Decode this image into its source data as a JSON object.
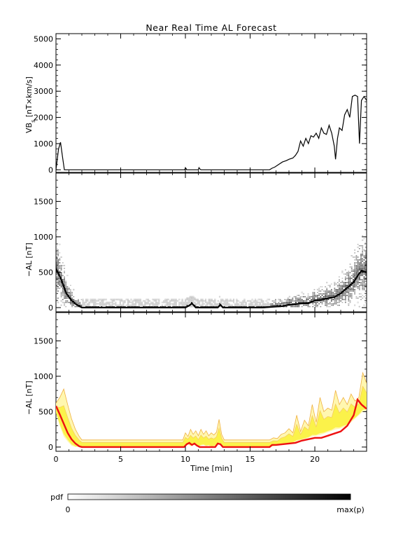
{
  "chart_data": [
    {
      "type": "line",
      "title": "Near Real Time AL Forecast",
      "ylabel": "VB",
      "ylabel_sub": "s",
      "ylabel_units": " [nT×km/s]",
      "ylim": [
        -100,
        5200
      ],
      "yticks": [
        "0",
        "1000",
        "2000",
        "3000",
        "4000",
        "5000"
      ],
      "xlim": [
        0,
        24
      ],
      "series": [
        {
          "color": "#000000",
          "x": [
            0,
            0.2,
            0.35,
            0.5,
            0.65,
            0.8,
            1.0,
            9.95,
            10.0,
            10.05,
            10.1,
            11.0,
            11.05,
            11.1,
            11.2,
            16.5,
            16.7,
            16.9,
            17.2,
            17.5,
            17.8,
            18.0,
            18.3,
            18.5,
            18.7,
            18.9,
            19.1,
            19.3,
            19.5,
            19.7,
            19.9,
            20.1,
            20.3,
            20.5,
            20.7,
            20.9,
            21.1,
            21.3,
            21.5,
            21.6,
            21.75,
            21.9,
            22.1,
            22.3,
            22.5,
            22.7,
            22.9,
            23.1,
            23.3,
            23.45,
            23.6,
            23.8,
            24.0
          ],
          "y": [
            0,
            800,
            1050,
            500,
            0,
            0,
            0,
            0,
            80,
            50,
            0,
            0,
            80,
            40,
            0,
            0,
            60,
            100,
            200,
            300,
            350,
            400,
            450,
            550,
            700,
            1100,
            900,
            1200,
            1000,
            1300,
            1250,
            1400,
            1200,
            1600,
            1400,
            1350,
            1700,
            1400,
            900,
            400,
            1200,
            1600,
            1500,
            2100,
            2300,
            2000,
            2800,
            2850,
            2800,
            1000,
            2650,
            2800,
            2650
          ]
        }
      ]
    },
    {
      "type": "heatmap",
      "ylabel": "−AL [nT]",
      "ylim": [
        -60,
        1900
      ],
      "yticks": [
        "0",
        "500",
        "1000",
        "1500"
      ],
      "xlim": [
        0,
        24
      ],
      "center_line": {
        "x": [
          0,
          0.4,
          0.8,
          1.2,
          1.6,
          2.0,
          10.0,
          10.3,
          10.5,
          10.8,
          12.5,
          12.7,
          12.9,
          16.0,
          16.7,
          17.5,
          18.0,
          18.5,
          19.0,
          19.5,
          20.0,
          20.5,
          21.0,
          21.5,
          22.0,
          22.5,
          23.0,
          23.3,
          23.6,
          24.0
        ],
        "y": [
          550,
          400,
          200,
          100,
          40,
          0,
          0,
          30,
          60,
          0,
          0,
          40,
          0,
          0,
          10,
          20,
          40,
          50,
          60,
          60,
          100,
          110,
          130,
          150,
          200,
          280,
          360,
          450,
          520,
          500
        ]
      }
    },
    {
      "type": "area",
      "ylabel": "−AL [nT]",
      "xlabel": "Time [min]",
      "ylim": [
        -60,
        1900
      ],
      "yticks": [
        "0",
        "500",
        "1000",
        "1500"
      ],
      "xlim": [
        0,
        24
      ],
      "xticks": [
        "0",
        "5",
        "10",
        "15",
        "20"
      ],
      "xtick_values": [
        0,
        5,
        10,
        15,
        20
      ],
      "band": {
        "x": [
          0,
          0.3,
          0.6,
          0.9,
          1.2,
          1.5,
          1.8,
          2.0,
          9.8,
          10.0,
          10.2,
          10.4,
          10.6,
          10.8,
          11.0,
          11.2,
          11.4,
          11.6,
          11.8,
          12.0,
          12.2,
          12.4,
          12.6,
          12.8,
          13.0,
          16.5,
          16.8,
          17.1,
          17.4,
          17.7,
          18.0,
          18.3,
          18.6,
          18.9,
          19.2,
          19.5,
          19.8,
          20.1,
          20.4,
          20.7,
          21.0,
          21.3,
          21.6,
          21.9,
          22.2,
          22.5,
          22.8,
          23.1,
          23.4,
          23.7,
          24.0
        ],
        "upper": [
          620,
          700,
          820,
          600,
          400,
          250,
          150,
          100,
          100,
          200,
          150,
          250,
          180,
          230,
          160,
          250,
          180,
          230,
          160,
          200,
          170,
          210,
          390,
          180,
          100,
          100,
          130,
          120,
          180,
          200,
          260,
          200,
          450,
          220,
          380,
          300,
          600,
          350,
          700,
          500,
          550,
          520,
          800,
          600,
          700,
          600,
          750,
          650,
          700,
          1050,
          900
        ],
        "lower": [
          480,
          300,
          150,
          80,
          20,
          0,
          0,
          0,
          0,
          20,
          40,
          10,
          30,
          20,
          0,
          20,
          30,
          10,
          20,
          0,
          10,
          20,
          50,
          20,
          0,
          0,
          10,
          20,
          30,
          40,
          50,
          60,
          80,
          100,
          110,
          130,
          150,
          160,
          170,
          190,
          210,
          230,
          250,
          260,
          280,
          300,
          350,
          400,
          450,
          500,
          520
        ]
      },
      "median": {
        "x": [
          0,
          0.3,
          0.6,
          0.9,
          1.2,
          1.5,
          1.8,
          2.0,
          9.9,
          10.1,
          10.3,
          10.5,
          10.7,
          10.9,
          11.1,
          12.3,
          12.5,
          12.7,
          12.9,
          16.5,
          16.7,
          17.0,
          17.5,
          18.0,
          18.5,
          19.0,
          19.5,
          20.0,
          20.5,
          21.0,
          21.5,
          22.0,
          22.5,
          23.0,
          23.3,
          23.6,
          24.0
        ],
        "y": [
          580,
          460,
          330,
          200,
          110,
          50,
          10,
          0,
          0,
          40,
          60,
          30,
          50,
          20,
          0,
          0,
          50,
          40,
          0,
          0,
          30,
          30,
          40,
          50,
          60,
          90,
          110,
          130,
          130,
          160,
          190,
          220,
          300,
          450,
          670,
          600,
          540
        ]
      }
    }
  ],
  "colorbar": {
    "label": "pdf",
    "min_label": "0",
    "max_label": "max(p)"
  }
}
